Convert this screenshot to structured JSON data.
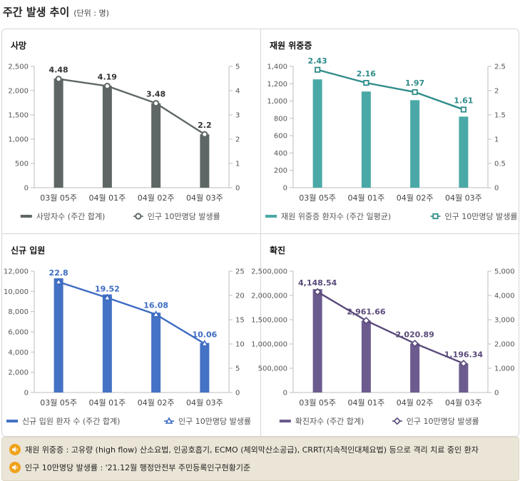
{
  "header": {
    "title": "주간 발생 추이",
    "unit": "(단위 : 명)"
  },
  "chart_data": [
    {
      "id": "deaths",
      "type": "bar",
      "title": "사망",
      "categories": [
        "03월 05주",
        "04월 01주",
        "04월 02주",
        "04월 03주"
      ],
      "y_left": {
        "min": 0,
        "max": 2500,
        "ticks": [
          0,
          500,
          1000,
          1500,
          2000,
          2500
        ],
        "tick_labels": [
          "0",
          "500",
          "1,000",
          "1,500",
          "2,000",
          "2,500"
        ]
      },
      "y_right": {
        "min": 0,
        "max": 5,
        "ticks": [
          0,
          1,
          2,
          3,
          4,
          5
        ],
        "tick_labels": [
          "0",
          "1",
          "2",
          "3",
          "4",
          "5"
        ]
      },
      "series": [
        {
          "name": "사망자수 (주간 합계)",
          "type": "bar",
          "axis": "left",
          "values": [
            2250,
            2100,
            1740,
            1100
          ]
        },
        {
          "name": "인구 10만명당 발생률",
          "type": "line",
          "axis": "right",
          "marker": "circle",
          "values": [
            4.48,
            4.19,
            3.48,
            2.2
          ],
          "labels": [
            "4.48",
            "4.19",
            "3.48",
            "2.2"
          ]
        }
      ],
      "colors": {
        "bar": "#5e6666",
        "line": "#5e6666",
        "label": "#333333"
      }
    },
    {
      "id": "critical",
      "type": "bar",
      "title": "재원 위중증",
      "categories": [
        "03월 05주",
        "04월 01주",
        "04월 02주",
        "04월 03주"
      ],
      "y_left": {
        "min": 0,
        "max": 1400,
        "ticks": [
          0,
          200,
          400,
          600,
          800,
          1000,
          1200,
          1400
        ],
        "tick_labels": [
          "0",
          "200",
          "400",
          "600",
          "800",
          "1,000",
          "1,200",
          "1,400"
        ]
      },
      "y_right": {
        "min": 0,
        "max": 2.5,
        "ticks": [
          0,
          0.5,
          1,
          1.5,
          2,
          2.5
        ],
        "tick_labels": [
          "0",
          "0.5",
          "1",
          "1.5",
          "2",
          "2.5"
        ]
      },
      "series": [
        {
          "name": "재원 위중증 환자수 (주간 일평균)",
          "type": "bar",
          "axis": "left",
          "values": [
            1250,
            1110,
            1010,
            820
          ]
        },
        {
          "name": "인구 10만명당 발생률",
          "type": "line",
          "axis": "right",
          "marker": "square",
          "values": [
            2.43,
            2.16,
            1.97,
            1.61
          ],
          "labels": [
            "2.43",
            "2.16",
            "1.97",
            "1.61"
          ]
        }
      ],
      "colors": {
        "bar": "#4aa9a6",
        "line": "#2f8c89",
        "label": "#2f8c89"
      }
    },
    {
      "id": "admissions",
      "type": "bar",
      "title": "신규 입원",
      "categories": [
        "03월 05주",
        "04월 01주",
        "04월 02주",
        "04월 03주"
      ],
      "y_left": {
        "min": 0,
        "max": 12000,
        "ticks": [
          0,
          2000,
          4000,
          6000,
          8000,
          10000,
          12000
        ],
        "tick_labels": [
          "0",
          "2,000",
          "4,000",
          "6,000",
          "8,000",
          "10,000",
          "12,000"
        ]
      },
      "y_right": {
        "min": 0,
        "max": 25,
        "ticks": [
          0,
          5,
          10,
          15,
          20,
          25
        ],
        "tick_labels": [
          "0",
          "5",
          "10",
          "15",
          "20",
          "25"
        ]
      },
      "series": [
        {
          "name": "신규 입원 환자 수 (주간 합계)",
          "type": "bar",
          "axis": "left",
          "values": [
            11300,
            9700,
            7900,
            4900
          ]
        },
        {
          "name": "인구 10만명당 발생률",
          "type": "line",
          "axis": "right",
          "marker": "triangle",
          "values": [
            22.8,
            19.52,
            16.08,
            10.06
          ],
          "labels": [
            "22.8",
            "19.52",
            "16.08",
            "10.06"
          ]
        }
      ],
      "colors": {
        "bar": "#4472c4",
        "line": "#3c6bc2",
        "label": "#3c6bc2"
      }
    },
    {
      "id": "confirmed",
      "type": "bar",
      "title": "확진",
      "categories": [
        "03월 05주",
        "04월 01주",
        "04월 02주",
        "04월 03주"
      ],
      "y_left": {
        "min": 0,
        "max": 2500000,
        "ticks": [
          0,
          500000,
          1000000,
          1500000,
          2000000,
          2500000
        ],
        "tick_labels": [
          "0",
          "500,000",
          "1,000,000",
          "1,500,000",
          "2,000,000",
          "2,500,000"
        ]
      },
      "y_right": {
        "min": 0,
        "max": 5000,
        "ticks": [
          0,
          1000,
          2000,
          3000,
          4000,
          5000
        ],
        "tick_labels": [
          "0",
          "1,000",
          "2,000",
          "3,000",
          "4,000",
          "5,000"
        ]
      },
      "series": [
        {
          "name": "확진자수 (주간 합계)",
          "type": "bar",
          "axis": "left",
          "values": [
            2130000,
            1480000,
            1010000,
            600000
          ]
        },
        {
          "name": "인구 10만명당 발생률",
          "type": "line",
          "axis": "right",
          "marker": "diamond",
          "values": [
            4148.54,
            2961.66,
            2020.89,
            1196.34
          ],
          "labels": [
            "4,148.54",
            "2,961.66",
            "2,020.89",
            "1,196.34"
          ]
        }
      ],
      "colors": {
        "bar": "#6c5b8e",
        "line": "#5a4a7a",
        "label": "#5a4a7a"
      }
    }
  ],
  "notes": [
    "재원 위중증 : 고유량 (high flow) 산소요법, 인공호흡기, ECMO (체외막산소공급), CRRT(지속적인대체요법) 등으로 격리 치료 중인 환자",
    "인구 10만명당 발생률 : '21.12월 행정안전부 주민등록인구현황기준"
  ]
}
